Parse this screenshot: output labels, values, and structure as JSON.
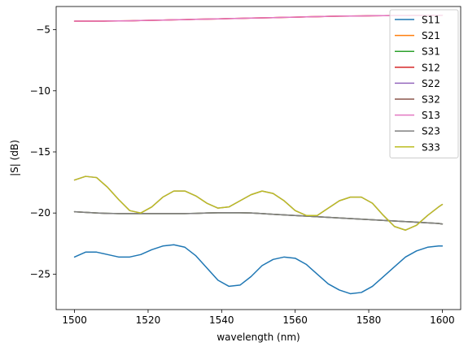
{
  "chart_data": {
    "type": "line",
    "xlabel": "wavelength (nm)",
    "ylabel": "|S| (dB)",
    "xlim": [
      1495,
      1605
    ],
    "ylim": [
      -27.9,
      -3.1
    ],
    "xticks": [
      1500,
      1520,
      1540,
      1560,
      1580,
      1600
    ],
    "yticks": [
      -5,
      -10,
      -15,
      -20,
      -25
    ],
    "xtick_labels": [
      "1500",
      "1520",
      "1540",
      "1560",
      "1580",
      "1600"
    ],
    "ytick_labels": [
      "−5",
      "−10",
      "−15",
      "−20",
      "−25"
    ],
    "grid": false,
    "legend_position": "top-right",
    "x": [
      1500,
      1503,
      1506,
      1509,
      1512,
      1515,
      1518,
      1521,
      1524,
      1527,
      1530,
      1533,
      1536,
      1539,
      1542,
      1545,
      1548,
      1551,
      1554,
      1557,
      1560,
      1563,
      1566,
      1569,
      1572,
      1575,
      1578,
      1581,
      1584,
      1587,
      1590,
      1593,
      1596,
      1599,
      1600
    ],
    "series": [
      {
        "name": "S11",
        "color": "#1f77b4",
        "values": [
          -23.6,
          -23.2,
          -23.2,
          -23.4,
          -23.6,
          -23.6,
          -23.4,
          -23.0,
          -22.7,
          -22.6,
          -22.8,
          -23.5,
          -24.5,
          -25.5,
          -26.0,
          -25.9,
          -25.2,
          -24.3,
          -23.8,
          -23.6,
          -23.7,
          -24.2,
          -25.0,
          -25.8,
          -26.3,
          -26.6,
          -26.5,
          -26.0,
          -25.2,
          -24.4,
          -23.6,
          -23.1,
          -22.8,
          -22.7,
          -22.7
        ]
      },
      {
        "name": "S21",
        "color": "#ff7f0e",
        "values": [
          -4.3,
          -4.3,
          -4.3,
          -4.29,
          -4.28,
          -4.27,
          -4.25,
          -4.23,
          -4.21,
          -4.19,
          -4.17,
          -4.15,
          -4.13,
          -4.11,
          -4.09,
          -4.07,
          -4.05,
          -4.03,
          -4.01,
          -3.99,
          -3.97,
          -3.95,
          -3.93,
          -3.91,
          -3.89,
          -3.88,
          -3.87,
          -3.86,
          -3.85,
          -3.84,
          -3.84,
          -3.83,
          -3.83,
          -3.82,
          -3.82
        ]
      },
      {
        "name": "S31",
        "color": "#2ca02c",
        "values": [
          -19.9,
          -19.95,
          -20.0,
          -20.03,
          -20.05,
          -20.05,
          -20.05,
          -20.05,
          -20.05,
          -20.05,
          -20.05,
          -20.03,
          -20.0,
          -19.98,
          -19.97,
          -19.98,
          -20.0,
          -20.05,
          -20.1,
          -20.15,
          -20.2,
          -20.25,
          -20.3,
          -20.35,
          -20.4,
          -20.45,
          -20.5,
          -20.55,
          -20.6,
          -20.65,
          -20.7,
          -20.75,
          -20.8,
          -20.85,
          -20.9
        ]
      },
      {
        "name": "S12",
        "color": "#d62728",
        "values": [
          -4.3,
          -4.3,
          -4.3,
          -4.29,
          -4.28,
          -4.27,
          -4.25,
          -4.23,
          -4.21,
          -4.19,
          -4.17,
          -4.15,
          -4.13,
          -4.11,
          -4.09,
          -4.07,
          -4.05,
          -4.03,
          -4.01,
          -3.99,
          -3.97,
          -3.95,
          -3.93,
          -3.91,
          -3.89,
          -3.88,
          -3.87,
          -3.86,
          -3.85,
          -3.84,
          -3.84,
          -3.83,
          -3.83,
          -3.82,
          -3.82
        ]
      },
      {
        "name": "S22",
        "color": "#9467bd",
        "values": [
          -17.3,
          -17.0,
          -17.1,
          -17.9,
          -18.9,
          -19.8,
          -20.0,
          -19.5,
          -18.7,
          -18.2,
          -18.2,
          -18.6,
          -19.2,
          -19.6,
          -19.5,
          -19.0,
          -18.5,
          -18.2,
          -18.4,
          -19.0,
          -19.8,
          -20.2,
          -20.2,
          -19.6,
          -19.0,
          -18.7,
          -18.7,
          -19.2,
          -20.2,
          -21.1,
          -21.4,
          -21.0,
          -20.2,
          -19.5,
          -19.3
        ]
      },
      {
        "name": "S32",
        "color": "#8c564b",
        "values": [
          -19.9,
          -19.95,
          -20.0,
          -20.03,
          -20.05,
          -20.05,
          -20.05,
          -20.05,
          -20.05,
          -20.05,
          -20.05,
          -20.03,
          -20.0,
          -19.98,
          -19.97,
          -19.98,
          -20.0,
          -20.05,
          -20.1,
          -20.15,
          -20.2,
          -20.25,
          -20.3,
          -20.35,
          -20.4,
          -20.45,
          -20.5,
          -20.55,
          -20.6,
          -20.65,
          -20.7,
          -20.75,
          -20.8,
          -20.85,
          -20.9
        ]
      },
      {
        "name": "S13",
        "color": "#e377c2",
        "values": [
          -4.3,
          -4.3,
          -4.3,
          -4.29,
          -4.28,
          -4.27,
          -4.25,
          -4.23,
          -4.21,
          -4.19,
          -4.17,
          -4.15,
          -4.13,
          -4.11,
          -4.09,
          -4.07,
          -4.05,
          -4.03,
          -4.01,
          -3.99,
          -3.97,
          -3.95,
          -3.93,
          -3.91,
          -3.89,
          -3.88,
          -3.87,
          -3.86,
          -3.85,
          -3.84,
          -3.84,
          -3.83,
          -3.83,
          -3.82,
          -3.82
        ]
      },
      {
        "name": "S23",
        "color": "#7f7f7f",
        "values": [
          -19.9,
          -19.95,
          -20.0,
          -20.03,
          -20.05,
          -20.05,
          -20.05,
          -20.05,
          -20.05,
          -20.05,
          -20.05,
          -20.03,
          -20.0,
          -19.98,
          -19.97,
          -19.98,
          -20.0,
          -20.05,
          -20.1,
          -20.15,
          -20.2,
          -20.25,
          -20.3,
          -20.35,
          -20.4,
          -20.45,
          -20.5,
          -20.55,
          -20.6,
          -20.65,
          -20.7,
          -20.75,
          -20.8,
          -20.85,
          -20.9
        ]
      },
      {
        "name": "S33",
        "color": "#bcbd22",
        "values": [
          -17.3,
          -17.0,
          -17.1,
          -17.9,
          -18.9,
          -19.8,
          -20.0,
          -19.5,
          -18.7,
          -18.2,
          -18.2,
          -18.6,
          -19.2,
          -19.6,
          -19.5,
          -19.0,
          -18.5,
          -18.2,
          -18.4,
          -19.0,
          -19.8,
          -20.2,
          -20.2,
          -19.6,
          -19.0,
          -18.7,
          -18.7,
          -19.2,
          -20.2,
          -21.1,
          -21.4,
          -21.0,
          -20.2,
          -19.5,
          -19.3
        ]
      }
    ]
  }
}
